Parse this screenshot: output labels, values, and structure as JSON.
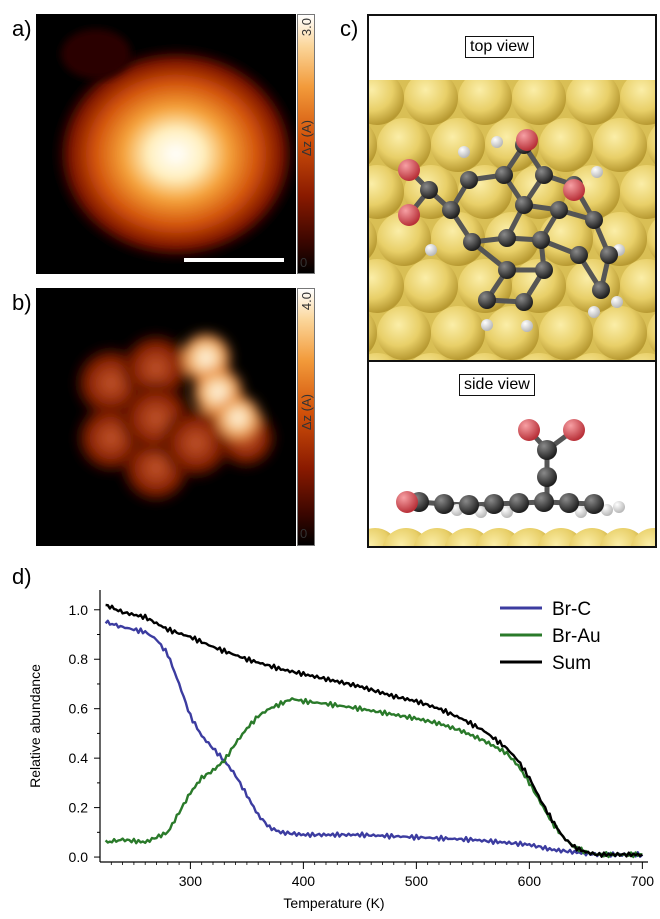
{
  "panels": {
    "a": {
      "label": "a)",
      "cbar_max": "3.0",
      "cbar_min": "0",
      "cbar_label": "Δz (A)"
    },
    "b": {
      "label": "b)",
      "cbar_max": "4.0",
      "cbar_min": "0",
      "cbar_label": "Δz (A)"
    },
    "c": {
      "label": "c)",
      "top_title": "top view",
      "side_title": "side view"
    },
    "d": {
      "label": "d)"
    }
  },
  "colors": {
    "br_c": "#3c3ca0",
    "br_au": "#2a7a2a",
    "sum": "#000000",
    "gold": "#e6cf6a",
    "carbon": "#2e2e2e",
    "oxygen": "#d9545a",
    "hydrogen": "#f2f2f2"
  },
  "chart_data": {
    "type": "line",
    "xlabel": "Temperature (K)",
    "ylabel": "Relative abundance",
    "xlim": [
      220,
      705
    ],
    "ylim": [
      -0.02,
      1.08
    ],
    "xticks": [
      300,
      400,
      500,
      600,
      700
    ],
    "yticks": [
      "0.0",
      "0.2",
      "0.4",
      "0.6",
      "0.8",
      "1.0"
    ],
    "legend_position": "top-right",
    "series": [
      {
        "name": "Br-C",
        "color": "#3c3ca0",
        "x": [
          225,
          240,
          260,
          270,
          280,
          290,
          300,
          310,
          320,
          330,
          340,
          350,
          360,
          370,
          380,
          400,
          450,
          500,
          550,
          600,
          620,
          640,
          660,
          680,
          700
        ],
        "y": [
          0.95,
          0.93,
          0.91,
          0.88,
          0.82,
          0.7,
          0.57,
          0.49,
          0.44,
          0.39,
          0.33,
          0.25,
          0.17,
          0.12,
          0.1,
          0.09,
          0.09,
          0.08,
          0.07,
          0.05,
          0.03,
          0.02,
          0.01,
          0.01,
          0.01
        ]
      },
      {
        "name": "Br-Au",
        "color": "#2a7a2a",
        "x": [
          225,
          240,
          260,
          270,
          280,
          290,
          300,
          310,
          320,
          330,
          340,
          350,
          360,
          370,
          380,
          390,
          400,
          420,
          450,
          500,
          520,
          540,
          560,
          580,
          590,
          600,
          610,
          620,
          630,
          640,
          650,
          660,
          680,
          700
        ],
        "y": [
          0.06,
          0.07,
          0.06,
          0.08,
          0.1,
          0.18,
          0.26,
          0.32,
          0.35,
          0.39,
          0.46,
          0.52,
          0.57,
          0.6,
          0.62,
          0.64,
          0.63,
          0.62,
          0.6,
          0.56,
          0.54,
          0.51,
          0.47,
          0.42,
          0.37,
          0.3,
          0.22,
          0.14,
          0.08,
          0.04,
          0.02,
          0.01,
          0.01,
          0.01
        ]
      },
      {
        "name": "Sum",
        "color": "#000000",
        "x": [
          225,
          240,
          260,
          280,
          300,
          320,
          350,
          380,
          400,
          420,
          450,
          480,
          500,
          520,
          540,
          560,
          580,
          590,
          600,
          610,
          620,
          630,
          640,
          650,
          660,
          680,
          700
        ],
        "y": [
          1.02,
          0.99,
          0.97,
          0.92,
          0.89,
          0.85,
          0.8,
          0.76,
          0.74,
          0.72,
          0.69,
          0.65,
          0.63,
          0.6,
          0.56,
          0.51,
          0.44,
          0.39,
          0.32,
          0.23,
          0.15,
          0.08,
          0.04,
          0.02,
          0.01,
          0.01,
          0.01
        ]
      }
    ]
  }
}
